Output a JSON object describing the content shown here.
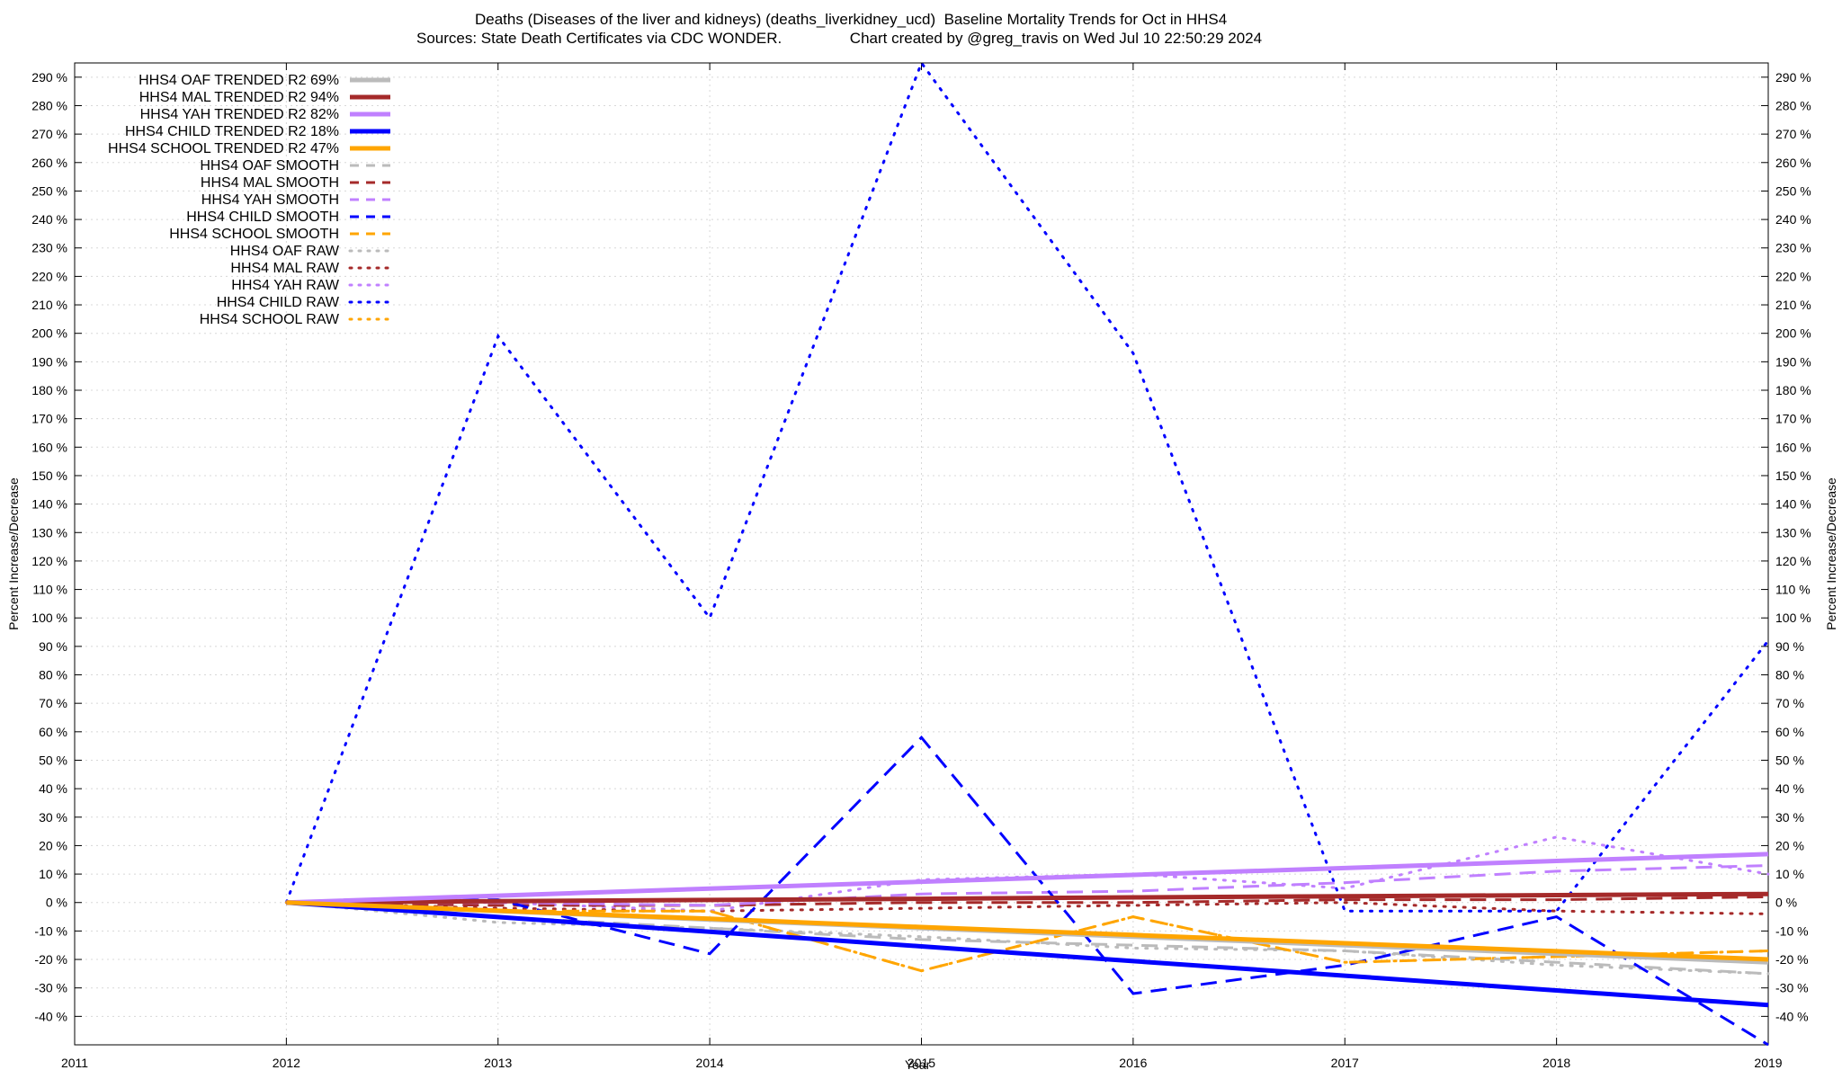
{
  "header": {
    "title_line1": "Deaths (Diseases of the liver and kidneys) (deaths_liverkidney_ucd)  Baseline Mortality Trends for Oct in HHS4",
    "title_line2": "Sources: State Death Certificates via CDC WONDER.                Chart created by @greg_travis on Wed Jul 10 22:50:29 2024"
  },
  "chart_data": {
    "type": "line",
    "xlabel": "Year",
    "ylabel_left": "Percent Increase/Decrease",
    "ylabel_right": "Percent Increase/Decrease",
    "xlim": [
      2011,
      2019
    ],
    "ylim": [
      -50,
      295
    ],
    "x_ticks": [
      "2011",
      "2012",
      "2013",
      "2014",
      "2015",
      "2016",
      "2017",
      "2018",
      "2019"
    ],
    "y_ticks": [
      "290 %",
      "280 %",
      "270 %",
      "260 %",
      "250 %",
      "240 %",
      "230 %",
      "220 %",
      "210 %",
      "200 %",
      "190 %",
      "180 %",
      "170 %",
      "160 %",
      "150 %",
      "140 %",
      "130 %",
      "120 %",
      "110 %",
      "100 %",
      "90 %",
      "80 %",
      "70 %",
      "60 %",
      "50 %",
      "40 %",
      "30 %",
      "20 %",
      "10 %",
      "0 %",
      "-10 %",
      "-20 %",
      "-30 %",
      "-40 %"
    ],
    "grid": true,
    "legend_position": "top-left",
    "x": [
      2012,
      2013,
      2014,
      2015,
      2016,
      2017,
      2018,
      2019
    ],
    "series": [
      {
        "name": "HHS4 OAF TRENDED R2  69%",
        "style": "trend",
        "color": "#bbbbbb",
        "values": [
          0,
          -3.0,
          -6.0,
          -9.0,
          -12.0,
          -15.0,
          -18.0,
          -21.0
        ]
      },
      {
        "name": "HHS4 MAL TRENDED R2  94%",
        "style": "trend",
        "color": "#a52a2a",
        "values": [
          0,
          0.5,
          0.9,
          1.3,
          1.8,
          2.2,
          2.6,
          3.0
        ]
      },
      {
        "name": "HHS4 YAH TRENDED R2  82%",
        "style": "trend",
        "color": "#c080ff",
        "values": [
          0,
          2.4,
          4.9,
          7.3,
          9.7,
          12.1,
          14.6,
          17.0
        ]
      },
      {
        "name": "HHS4 CHILD TRENDED R2  18%",
        "style": "trend",
        "color": "#0000ff",
        "values": [
          0,
          -5.1,
          -10.3,
          -15.4,
          -20.6,
          -25.7,
          -30.9,
          -36.0
        ]
      },
      {
        "name": "HHS4 SCHOOL TRENDED R2  47%",
        "style": "trend",
        "color": "#ffa500",
        "values": [
          0,
          -2.9,
          -5.7,
          -8.6,
          -11.4,
          -14.3,
          -17.1,
          -20.0
        ]
      },
      {
        "name": "HHS4 OAF SMOOTH",
        "style": "smooth",
        "color": "#bbbbbb",
        "values": [
          0,
          -5,
          -9,
          -13,
          -15,
          -17,
          -21,
          -25
        ]
      },
      {
        "name": "HHS4 MAL SMOOTH",
        "style": "smooth",
        "color": "#a52a2a",
        "values": [
          0,
          -1,
          -1,
          0,
          0,
          1,
          1,
          2
        ]
      },
      {
        "name": "HHS4 YAH SMOOTH",
        "style": "smooth",
        "color": "#c080ff",
        "values": [
          0,
          0,
          -1,
          3,
          4,
          7,
          11,
          13
        ]
      },
      {
        "name": "HHS4 CHILD SMOOTH",
        "style": "smooth",
        "color": "#0000ff",
        "values": [
          0,
          1,
          -18,
          58,
          -32,
          -22,
          -5,
          -52
        ]
      },
      {
        "name": "HHS4 SCHOOL SMOOTH",
        "style": "smooth",
        "color": "#ffa500",
        "values": [
          0,
          -3,
          -3,
          -24,
          -5,
          -21,
          -19,
          -17
        ]
      },
      {
        "name": "HHS4 OAF RAW",
        "style": "raw",
        "color": "#bbbbbb",
        "values": [
          0,
          -7,
          -9,
          -12,
          -16,
          -17,
          -22,
          -25
        ]
      },
      {
        "name": "HHS4 MAL RAW",
        "style": "raw",
        "color": "#a52a2a",
        "values": [
          0,
          -2,
          -3,
          -2,
          -1,
          0,
          -3,
          -4
        ]
      },
      {
        "name": "HHS4 YAH RAW",
        "style": "raw",
        "color": "#c080ff",
        "values": [
          0,
          0,
          -3,
          8,
          10,
          5,
          23,
          10
        ]
      },
      {
        "name": "HHS4 CHILD RAW",
        "style": "raw",
        "color": "#0000ff",
        "values": [
          0,
          199,
          100,
          296,
          193,
          -3,
          -3,
          92
        ]
      },
      {
        "name": "HHS4 SCHOOL RAW",
        "style": "raw",
        "color": "#ffa500",
        "values": [
          0,
          -3,
          -3,
          -24,
          -5,
          -21,
          -19,
          -17
        ]
      }
    ]
  }
}
